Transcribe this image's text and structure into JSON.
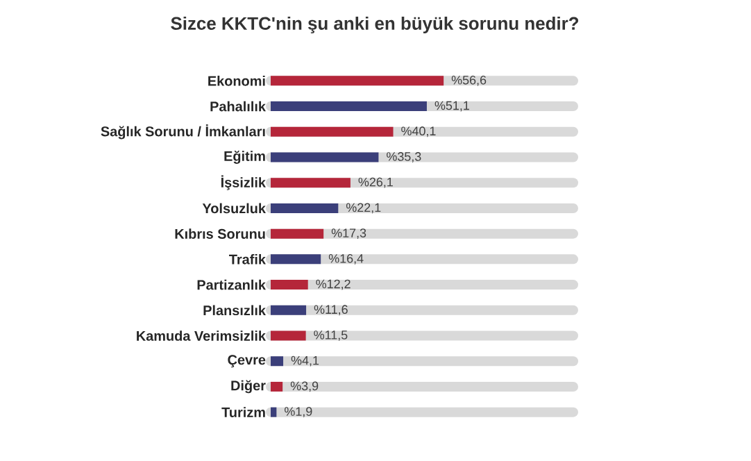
{
  "chart_data": {
    "type": "bar",
    "orientation": "horizontal",
    "title": "Sizce KKTC'nin şu anki en büyük sorunu nedir?",
    "categories": [
      "Ekonomi",
      "Pahalılık",
      "Sağlık Sorunu / İmkanları",
      "Eğitim",
      "İşsizlik",
      "Yolsuzluk",
      "Kıbrıs Sorunu",
      "Trafik",
      "Partizanlık",
      "Plansızlık",
      "Kamuda Verimsizlik",
      "Çevre",
      "Diğer",
      "Turizm"
    ],
    "values": [
      56.6,
      51.1,
      40.1,
      35.3,
      26.1,
      22.1,
      17.3,
      16.4,
      12.2,
      11.6,
      11.5,
      4.1,
      3.9,
      1.9
    ],
    "colors": [
      "#b5263a",
      "#3b3f7a",
      "#b5263a",
      "#3b3f7a",
      "#b5263a",
      "#3b3f7a",
      "#b5263a",
      "#3b3f7a",
      "#b5263a",
      "#3b3f7a",
      "#b5263a",
      "#3b3f7a",
      "#b5263a",
      "#3b3f7a"
    ],
    "value_labels": [
      "%56,6",
      "%51,1",
      "%40,1",
      "%35,3",
      "%26,1",
      "%22,1",
      "%17,3",
      "%16,4",
      "%12,2",
      "%11,6",
      "%11,5",
      "%4,1",
      "%3,9",
      "%1,9"
    ],
    "tick_labels": "y"
  }
}
